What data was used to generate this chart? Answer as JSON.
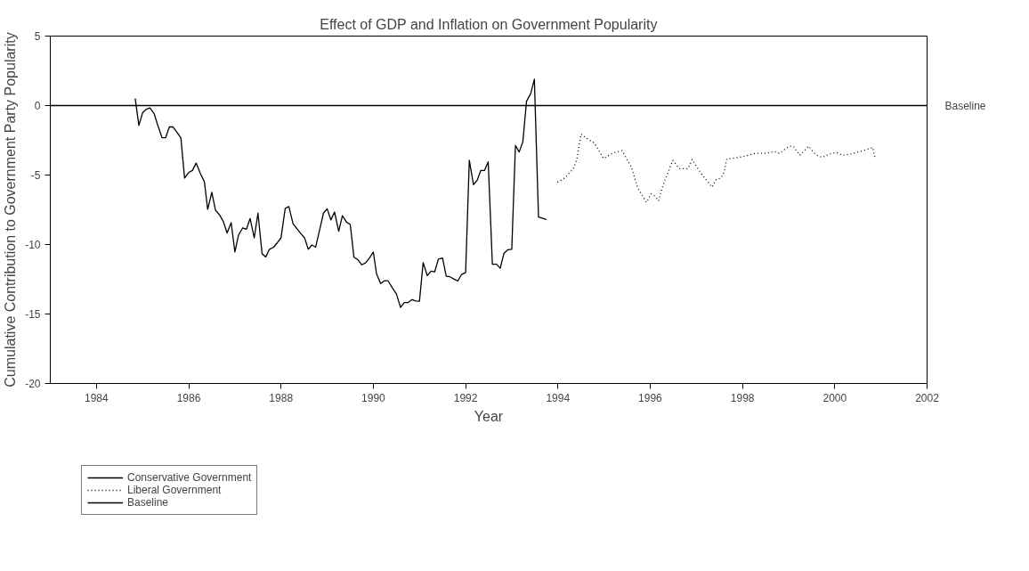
{
  "chart_data": {
    "type": "line",
    "title": "Effect of GDP and Inflation on Government Popularity",
    "xlabel": "Year",
    "ylabel": "Cumulative Contribution to Government Party Popularity",
    "xlim": [
      1983,
      2002
    ],
    "xticks": [
      1984,
      1986,
      1988,
      1990,
      1992,
      1994,
      1996,
      1998,
      2000,
      2002
    ],
    "ylim": [
      -20,
      5
    ],
    "yticks": [
      -20,
      -15,
      -10,
      -5,
      0,
      5
    ],
    "grid": false,
    "legend": "bottom left",
    "series": [
      {
        "name": "Conservative Government",
        "color": "#000000",
        "line_style": "solid",
        "x": [
          1984.84,
          1984.92,
          1985.0,
          1985.08,
          1985.16,
          1985.25,
          1985.33,
          1985.42,
          1985.5,
          1985.58,
          1985.66,
          1985.75,
          1985.83,
          1985.91,
          1986.0,
          1986.08,
          1986.16,
          1986.25,
          1986.34,
          1986.41,
          1986.5,
          1986.58,
          1986.67,
          1986.75,
          1986.83,
          1986.92,
          1987.0,
          1987.08,
          1987.17,
          1987.25,
          1987.33,
          1987.42,
          1987.5,
          1987.59,
          1987.67,
          1987.75,
          1987.84,
          1987.92,
          1988.0,
          1988.09,
          1988.17,
          1988.26,
          1988.34,
          1988.42,
          1988.51,
          1988.59,
          1988.67,
          1988.75,
          1988.84,
          1988.92,
          1989.0,
          1989.08,
          1989.16,
          1989.25,
          1989.33,
          1989.42,
          1989.5,
          1989.58,
          1989.67,
          1989.75,
          1989.83,
          1989.92,
          1990.0,
          1990.07,
          1990.16,
          1990.24,
          1990.32,
          1990.41,
          1990.5,
          1990.59,
          1990.67,
          1990.75,
          1990.84,
          1990.92,
          1991.0,
          1991.08,
          1991.17,
          1991.25,
          1991.33,
          1991.41,
          1991.5,
          1991.58,
          1991.66,
          1991.75,
          1991.83,
          1991.91,
          1992.0,
          1992.08,
          1992.17,
          1992.25,
          1992.33,
          1992.41,
          1992.49,
          1992.58,
          1992.67,
          1992.75,
          1992.83,
          1992.91,
          1993.0,
          1993.08,
          1993.16,
          1993.24,
          1993.32,
          1993.41,
          1993.49,
          1993.58,
          1993.75
        ],
        "values": [
          0.51,
          -1.43,
          -0.51,
          -0.27,
          -0.17,
          -0.58,
          -1.43,
          -2.31,
          -2.31,
          -1.54,
          -1.54,
          -1.95,
          -2.33,
          -5.22,
          -4.81,
          -4.67,
          -4.14,
          -4.87,
          -5.49,
          -7.47,
          -6.24,
          -7.53,
          -7.88,
          -8.35,
          -9.17,
          -8.43,
          -10.54,
          -9.31,
          -8.8,
          -8.9,
          -8.13,
          -9.52,
          -7.74,
          -10.68,
          -10.89,
          -10.34,
          -10.19,
          -9.87,
          -9.52,
          -7.41,
          -7.27,
          -8.5,
          -8.84,
          -9.17,
          -9.52,
          -10.34,
          -10.03,
          -10.19,
          -8.9,
          -7.74,
          -7.43,
          -8.23,
          -7.66,
          -9.05,
          -7.92,
          -8.39,
          -8.56,
          -10.91,
          -11.11,
          -11.46,
          -11.32,
          -10.95,
          -10.54,
          -12.12,
          -12.81,
          -12.61,
          -12.61,
          -13.1,
          -13.55,
          -14.53,
          -14.18,
          -14.18,
          -13.96,
          -14.06,
          -14.08,
          -11.3,
          -12.24,
          -11.91,
          -11.97,
          -11.05,
          -10.97,
          -12.28,
          -12.32,
          -12.49,
          -12.63,
          -12.16,
          -12.03,
          -3.93,
          -5.69,
          -5.38,
          -4.67,
          -4.67,
          -4.05,
          -11.42,
          -11.42,
          -11.71,
          -10.64,
          -10.38,
          -10.34,
          -2.87,
          -3.34,
          -2.62,
          0.31,
          0.86,
          1.9,
          -8.02,
          -8.19
        ]
      },
      {
        "name": "Liberal Government",
        "color": "#000000",
        "line_style": "dotted",
        "x": [
          1993.99,
          1994.15,
          1994.34,
          1994.41,
          1994.5,
          1994.67,
          1994.79,
          1994.99,
          1995.18,
          1995.39,
          1995.6,
          1995.73,
          1995.92,
          1996.02,
          1996.08,
          1996.18,
          1996.24,
          1996.31,
          1996.4,
          1996.49,
          1996.63,
          1996.82,
          1996.91,
          1996.98,
          1997.13,
          1997.21,
          1997.34,
          1997.43,
          1997.53,
          1997.6,
          1997.66,
          1997.79,
          1998.01,
          1998.27,
          1998.5,
          1998.69,
          1998.8,
          1999.01,
          1999.1,
          1999.24,
          1999.43,
          1999.59,
          1999.72,
          1999.92,
          2000.04,
          2000.17,
          2000.36,
          2000.59,
          2000.82,
          2000.88
        ],
        "values": [
          -5.52,
          -5.22,
          -4.5,
          -3.89,
          -2.05,
          -2.46,
          -2.7,
          -3.81,
          -3.44,
          -3.24,
          -4.5,
          -5.94,
          -6.96,
          -6.35,
          -6.45,
          -6.86,
          -6.14,
          -5.43,
          -4.71,
          -3.95,
          -4.54,
          -4.54,
          -3.89,
          -4.26,
          -5.02,
          -5.32,
          -5.87,
          -5.32,
          -5.22,
          -4.81,
          -3.85,
          -3.79,
          -3.68,
          -3.44,
          -3.44,
          -3.31,
          -3.44,
          -2.93,
          -2.93,
          -3.58,
          -2.93,
          -3.54,
          -3.73,
          -3.44,
          -3.38,
          -3.58,
          -3.48,
          -3.27,
          -3.01,
          -3.85
        ]
      },
      {
        "name": "Baseline",
        "color": "#000000",
        "line_style": "solid",
        "x": [
          1983,
          2002
        ],
        "values": [
          0,
          0
        ]
      }
    ],
    "annotations": [
      {
        "text": "Baseline",
        "x": 2002,
        "y": 0
      }
    ]
  }
}
